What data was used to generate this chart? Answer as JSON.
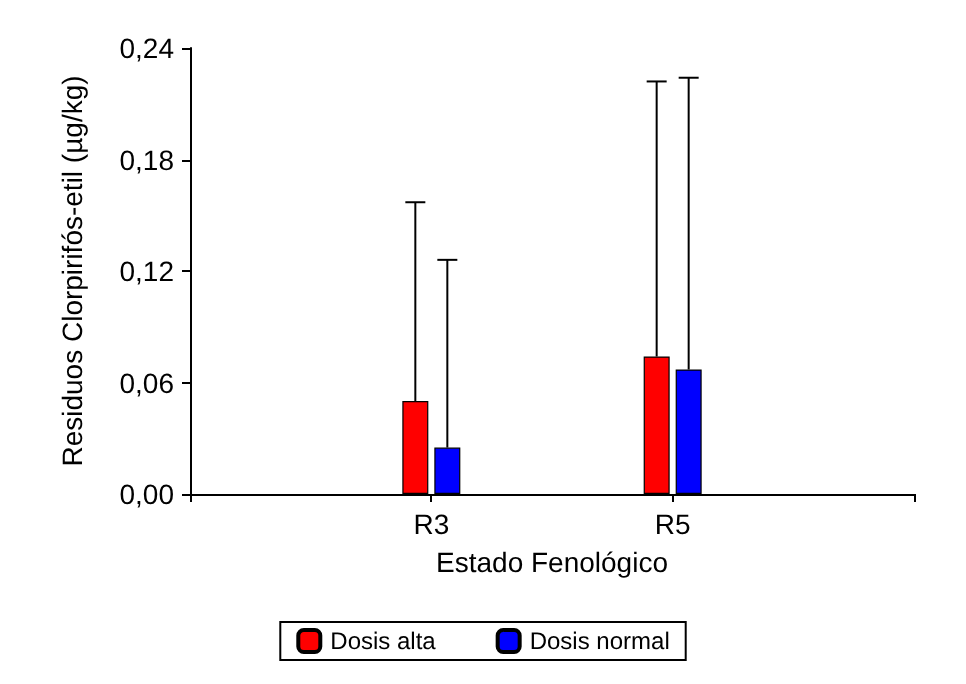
{
  "chart_data": {
    "type": "bar",
    "categories": [
      null,
      "R3",
      "R5",
      null
    ],
    "xlabel": "Estado Fenológico",
    "ylabel": "Residuos Clorpirifós-etil (µg/kg)",
    "series": [
      {
        "name": "Dosis alta",
        "color": "#ff0000",
        "values": [
          null,
          0.05,
          0.074,
          null
        ],
        "errors": [
          null,
          [
            0.05,
            0.157
          ],
          [
            0.074,
            0.222
          ],
          null
        ]
      },
      {
        "name": "Dosis normal",
        "color": "#0000ff",
        "values": [
          null,
          0.025,
          0.067,
          null
        ],
        "errors": [
          null,
          [
            0.025,
            0.126
          ],
          [
            0.067,
            0.224
          ],
          null
        ]
      }
    ],
    "ylim": [
      0,
      0.24
    ],
    "yticks": [
      {
        "value": 0,
        "label": "0,00"
      },
      {
        "value": 0.06,
        "label": "0,06"
      },
      {
        "value": 0.12,
        "label": "0,12"
      },
      {
        "value": 0.18,
        "label": "0,18"
      },
      {
        "value": 0.24,
        "label": "0,24"
      }
    ],
    "legend": "bottom",
    "grid": false
  }
}
